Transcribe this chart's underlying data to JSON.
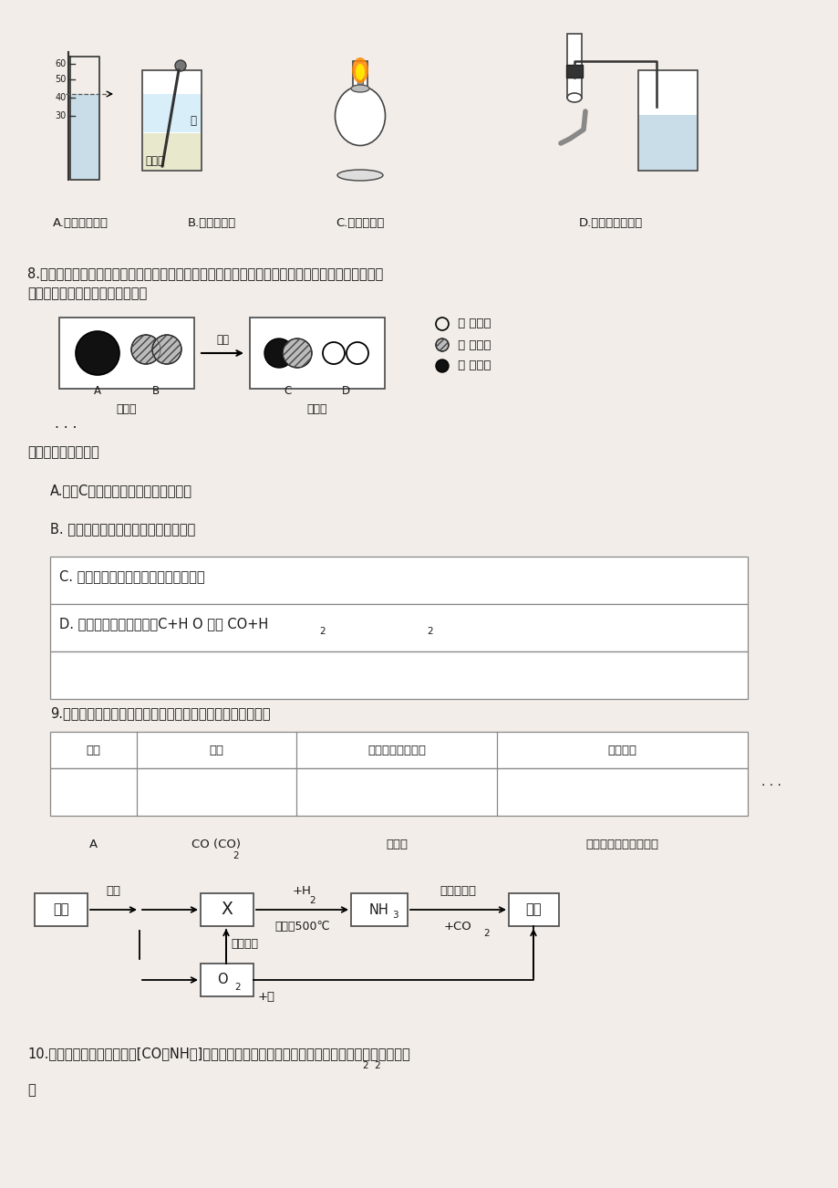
{
  "bg_color": "#f2ede8",
  "text_color": "#1a1a1a",
  "fs": 10.5,
  "fs_sm": 9.5,
  "fs_tiny": 8.0,
  "caption_A": "A.读出液体体积",
  "caption_B": "B.稀释浓硫酸",
  "caption_C": "C.点燃酒精灯",
  "caption_D": "D.检查装置气密性",
  "q8_line1": "8.宏观、微观、符号相结合是化学学科特有的思维方式。工业上常将煤洗选加工后用于制备水煤气，",
  "q8_line2": "其反应的微观示意图如下图所示：",
  "legend1": " 一 氢原子",
  "legend2": " 一 氧原子",
  "legend3": " 一 碳原子",
  "label_before": "反应前",
  "label_after": "反应后",
  "label_gaoweng": "高温",
  "dots": "· · ·",
  "q8_sub": "下列说法不正确的是",
  "optA": "A.物质C是由碳、氧两种元素组成的；",
  "optB": "B. 该反应前后原子的种类没有发生变化",
  "optC": "C. 该反应前后各元素化合价都没有变化",
  "optD_main": "D. 该反应的化学方程式为C+H O 高温 CO+H",
  "optD_sub1": "2",
  "optD_sub2": "2",
  "q9_text": "9.下列选用试剂和实验操作都正确的是（括号内物质为杂质）",
  "th0": "选项",
  "th1": "物质",
  "th2": "除杂试剂（足量）",
  "th3": "操作方法",
  "row_a_col0": "A",
  "row_a_col1": "CO (CO)",
  "row_a_col1_sub": "2",
  "row_a_col2": "氧化铜",
  "row_a_col3": "气体通过灼热的氧化铜",
  "row_dots": "· · ·",
  "flow_box_kongqi": "空气",
  "flow_label_fenli": "分离",
  "flow_box_X": "X",
  "flow_label_H2": "+H",
  "flow_label_H2_sub": "2",
  "flow_label_cond1": "加压，500℃",
  "flow_box_NH3": "NH",
  "flow_box_NH3_sub": "3",
  "flow_label_cond2": "低温、加压",
  "flow_label_CO2": "+CO",
  "flow_label_CO2_sub": "2",
  "flow_box_niaoso": "尿素",
  "flow_box_O2": "O",
  "flow_box_O2_sub": "2",
  "flow_label_energy": "供给能量",
  "flow_label_mei": "+煤",
  "q10_line1": "10.以空气等为原料合成尿素[CO（NH）]的流程（部分产物略去），如下图所示。下列说法不正确的",
  "q10_sub": "2  2",
  "q10_line2": "是"
}
